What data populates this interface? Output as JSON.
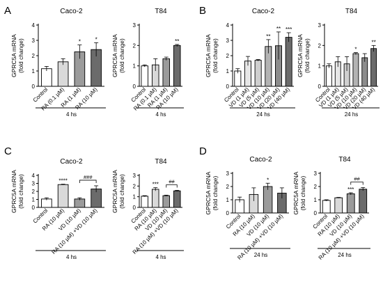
{
  "panel_letters": [
    "A",
    "B",
    "C",
    "D"
  ],
  "chart_data": [
    {
      "panel": "A",
      "type": "bar",
      "title": "Caco-2",
      "ylabel": "GPRC5A mRNA\n(fold change)",
      "ylim": [
        0,
        4
      ],
      "yticks": [
        0,
        1,
        2,
        3,
        4
      ],
      "categories": [
        "Control",
        "RA (0.1 µM)",
        "RA (1 µM)",
        "RA (10 µM)"
      ],
      "values": [
        1.15,
        1.6,
        2.25,
        2.4
      ],
      "errors": [
        0.15,
        0.2,
        0.45,
        0.45
      ],
      "fills": [
        "#ffffff",
        "#d9d9d9",
        "#9b9b9b",
        "#6b6b6b"
      ],
      "annotations": [
        "",
        "",
        "*",
        "*"
      ],
      "xgroup": "4 hs"
    },
    {
      "panel": "A",
      "type": "bar",
      "title": "T84",
      "ylabel": "GPRC5A mRNA\n(fold change)",
      "ylim": [
        0,
        3
      ],
      "yticks": [
        0,
        1,
        2,
        3
      ],
      "categories": [
        "Control",
        "RA (0.1 µM)",
        "RA (1 µM)",
        "RA (10 µM)"
      ],
      "values": [
        1.0,
        1.05,
        1.35,
        2.0
      ],
      "errors": [
        0.05,
        0.3,
        0.08,
        0.05
      ],
      "fills": [
        "#ffffff",
        "#d9d9d9",
        "#9b9b9b",
        "#6b6b6b"
      ],
      "annotations": [
        "",
        "",
        "",
        "**"
      ],
      "xgroup": "4 hs"
    },
    {
      "panel": "B",
      "type": "bar",
      "title": "Caco-2",
      "ylabel": "GPRC5A mRNA\n(fold change)",
      "ylim": [
        0,
        4
      ],
      "yticks": [
        0,
        1,
        2,
        3,
        4
      ],
      "categories": [
        "Control",
        "VD (1 µM)",
        "VD (5 µM)",
        "VD (10 µM)",
        "VD (20 µM)",
        "VD (40 µM)"
      ],
      "values": [
        1.0,
        1.65,
        1.7,
        2.6,
        2.65,
        3.2
      ],
      "errors": [
        0.15,
        0.3,
        0.05,
        0.45,
        0.9,
        0.3
      ],
      "fills": [
        "#ffffff",
        "#e6e6e6",
        "#cfcfcf",
        "#b3b3b3",
        "#8c8c8c",
        "#6b6b6b"
      ],
      "annotations": [
        "",
        "",
        "",
        "**",
        "**",
        "***"
      ],
      "xgroup": "24 hs"
    },
    {
      "panel": "B",
      "type": "bar",
      "title": "T84",
      "ylabel": "GPRC5A mRNA\n(fold change)",
      "ylim": [
        0,
        3
      ],
      "yticks": [
        0,
        1,
        2,
        3
      ],
      "categories": [
        "Control",
        "VD (1 µM)",
        "VD (5 µM)",
        "VD (10 µM)",
        "VD (20 µM)",
        "VD (40 µM)"
      ],
      "values": [
        1.0,
        1.2,
        1.1,
        1.6,
        1.4,
        1.85
      ],
      "errors": [
        0.1,
        0.25,
        0.35,
        0.05,
        0.2,
        0.15
      ],
      "fills": [
        "#ffffff",
        "#e6e6e6",
        "#cfcfcf",
        "#b3b3b3",
        "#8c8c8c",
        "#6b6b6b"
      ],
      "annotations": [
        "",
        "",
        "",
        "*",
        "",
        "**"
      ],
      "xgroup": "24 hs"
    },
    {
      "panel": "C",
      "type": "bar",
      "title": "Caco-2",
      "ylabel": "GPRC5A mRNA\n(fold change)",
      "ylim": [
        0,
        4
      ],
      "yticks": [
        0,
        1,
        2,
        3,
        4
      ],
      "categories": [
        "Control",
        "RA (10 µM)",
        "VD (10 µM)",
        "RA (10 µM) +VD (10 µM)"
      ],
      "values": [
        1.05,
        2.85,
        1.05,
        2.3
      ],
      "errors": [
        0.15,
        0.05,
        0.15,
        0.4
      ],
      "fills": [
        "#ffffff",
        "#d9d9d9",
        "#9b9b9b",
        "#6b6b6b"
      ],
      "annotations": [
        "",
        "****",
        "",
        ""
      ],
      "bracket": {
        "from": 2,
        "to": 3,
        "label": "###"
      },
      "xgroup": "4 hs"
    },
    {
      "panel": "C",
      "type": "bar",
      "title": "T84",
      "ylabel": "GPRC5A mRNA\n(fold change)",
      "ylim": [
        0,
        3
      ],
      "yticks": [
        0,
        1,
        2,
        3
      ],
      "categories": [
        "Control",
        "RA (10 µM)",
        "VD (10 µM)",
        "RA (10 µM) +VD (10 µM)"
      ],
      "values": [
        1.05,
        1.7,
        1.1,
        1.55
      ],
      "errors": [
        0.05,
        0.15,
        0.05,
        0.05
      ],
      "fills": [
        "#ffffff",
        "#d9d9d9",
        "#9b9b9b",
        "#6b6b6b"
      ],
      "annotations": [
        "",
        "***",
        "",
        ""
      ],
      "bracket": {
        "from": 2,
        "to": 3,
        "label": "##"
      },
      "xgroup": "4 hs"
    },
    {
      "panel": "D",
      "type": "bar",
      "title": "Caco-2",
      "ylabel": "GPRC5A mRNA\n(fold change)",
      "ylim": [
        0,
        3
      ],
      "yticks": [
        0,
        1,
        2,
        3
      ],
      "categories": [
        "Control",
        "RA (10 µM)",
        "VD (10 µM)",
        "RA (10 µM) +VD (10 µM)"
      ],
      "values": [
        1.0,
        1.4,
        2.0,
        1.5
      ],
      "errors": [
        0.2,
        0.5,
        0.25,
        0.4
      ],
      "fills": [
        "#ffffff",
        "#d9d9d9",
        "#9b9b9b",
        "#6b6b6b"
      ],
      "annotations": [
        "",
        "",
        "*",
        ""
      ],
      "xgroup": "24 hs"
    },
    {
      "panel": "D",
      "type": "bar",
      "title": "T84",
      "ylabel": "GPRC5A mRNA\n(fold change)",
      "ylim": [
        0,
        3
      ],
      "yticks": [
        0,
        1,
        2,
        3
      ],
      "categories": [
        "Control",
        "RA (10 µM)",
        "VD (10 µM)",
        "RA (10 µM) +VD (10 µM)"
      ],
      "values": [
        0.95,
        1.15,
        1.45,
        1.8
      ],
      "errors": [
        0.05,
        0.03,
        0.08,
        0.12
      ],
      "fills": [
        "#ffffff",
        "#d9d9d9",
        "#9b9b9b",
        "#6b6b6b"
      ],
      "annotations": [
        "",
        "",
        "***",
        ""
      ],
      "bracket": {
        "from": 2,
        "to": 3,
        "label": "##"
      },
      "xgroup": "24 hs"
    }
  ]
}
